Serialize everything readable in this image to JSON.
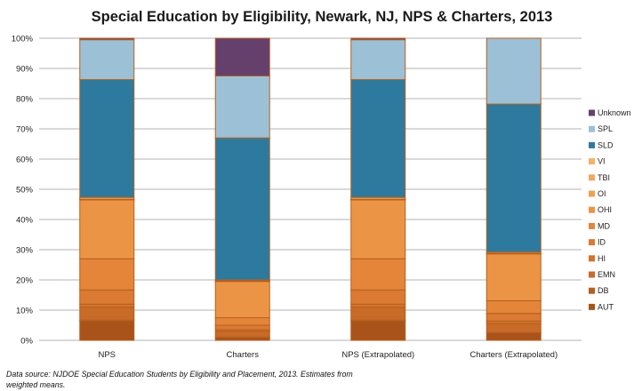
{
  "chart_data": {
    "type": "bar",
    "stacked": true,
    "title": "Special Education by Eligibility, Newark, NJ, NPS & Charters, 2013",
    "xlabel": "",
    "ylabel": "",
    "ylim": [
      0,
      100
    ],
    "y_ticks": [
      "0%",
      "10%",
      "20%",
      "30%",
      "40%",
      "50%",
      "60%",
      "70%",
      "80%",
      "90%",
      "100%"
    ],
    "categories": [
      "NPS",
      "Charters",
      "NPS (Extrapolated)",
      "Charters (Extrapolated)"
    ],
    "series": [
      {
        "name": "AUT",
        "color": "#a9531a",
        "values": [
          6.5,
          1.0,
          6.5,
          2.5
        ]
      },
      {
        "name": "DB",
        "color": "#b85d20",
        "values": [
          0.2,
          0.1,
          0.2,
          0.1
        ]
      },
      {
        "name": "EMN",
        "color": "#c86a28",
        "values": [
          4.3,
          1.9,
          4.3,
          3.0
        ]
      },
      {
        "name": "HI",
        "color": "#d4732c",
        "values": [
          1.0,
          0.5,
          1.0,
          0.8
        ]
      },
      {
        "name": "ID",
        "color": "#db7a33",
        "values": [
          4.7,
          1.5,
          4.7,
          2.5
        ]
      },
      {
        "name": "MD",
        "color": "#e4853a",
        "values": [
          10.3,
          2.5,
          10.3,
          4.2
        ]
      },
      {
        "name": "OHI",
        "color": "#ec9446",
        "values": [
          19.5,
          12.0,
          19.5,
          15.5
        ]
      },
      {
        "name": "OI",
        "color": "#f0a055",
        "values": [
          0.1,
          0.1,
          0.1,
          0.1
        ]
      },
      {
        "name": "TBI",
        "color": "#f2a860",
        "values": [
          0.1,
          0.1,
          0.1,
          0.1
        ]
      },
      {
        "name": "VI",
        "color": "#f5b06a",
        "values": [
          0.6,
          0.3,
          0.6,
          0.4
        ]
      },
      {
        "name": "SLD",
        "color": "#2e7a9e",
        "values": [
          39.0,
          47.0,
          39.0,
          49.0
        ]
      },
      {
        "name": "SPL",
        "color": "#9cc1d6",
        "values": [
          13.2,
          20.5,
          13.2,
          21.8
        ]
      },
      {
        "name": "Unknown",
        "color": "#65406d",
        "values": [
          0.5,
          12.5,
          0.5,
          0.0
        ]
      }
    ],
    "legend_position": "right",
    "grid": true
  },
  "footer": {
    "source_line1": "Data source: NJDOE Special Education Students by Eligibility and Placement, 2013. Estimates from",
    "source_line2": "weighted means."
  },
  "colors": {
    "bar_outline": "#b5601f",
    "grid": "#9a9a9a"
  }
}
